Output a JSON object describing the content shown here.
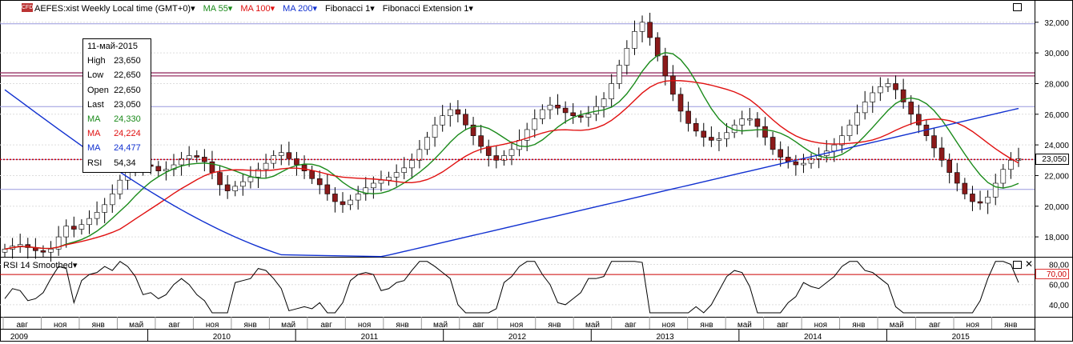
{
  "header": {
    "cfd_badge": "CFD",
    "symbol_label": "AEFES:xist Weekly Local time (GMT+0)▾",
    "ma55_label": "MA 55▾",
    "ma100_label": "MA 100▾",
    "ma200_label": "MA 200▾",
    "fib_label": "Fibonacci 1▾",
    "fibext_label": "Fibonacci Extension 1▾"
  },
  "info_box": {
    "date": "11-май-2015",
    "high_label": "High",
    "high": "23,650",
    "low_label": "Low",
    "low": "22,650",
    "open_label": "Open",
    "open": "22,650",
    "last_label": "Last",
    "last": "23,050",
    "ma55_label": "MA",
    "ma55": "24,330",
    "ma100_label": "MA",
    "ma100": "24,224",
    "ma200_label": "MA",
    "ma200": "24,477",
    "rsi_label": "RSI",
    "rsi": "54,34"
  },
  "rsi_header": "RSI 14 Smoothed▾",
  "price_tag": "23,050",
  "rsi_level_tag": "70,00",
  "colors": {
    "ma55": "#1a8a1a",
    "ma100": "#e01010",
    "ma200": "#1030d0",
    "price_line": "#cc0000",
    "fib": "#9999dd"
  },
  "chart_data": {
    "type": "candlestick",
    "timeframe": "weekly",
    "y_ticks": [
      "32,000",
      "30,000",
      "28,000",
      "26,000",
      "24,000",
      "22,000",
      "20,000",
      "18,000"
    ],
    "ylim": [
      16700,
      33400
    ],
    "rsi_ticks": [
      "80,00",
      "60,00",
      "40,00"
    ],
    "rsi_lim": [
      28,
      86
    ],
    "rsi_level": 70,
    "x_month_labels": [
      "авг",
      "ноя",
      "янв",
      "май",
      "авг",
      "ноя",
      "янв",
      "май",
      "авг",
      "ноя",
      "янв",
      "май",
      "авг",
      "ноя",
      "янв",
      "май",
      "авг",
      "ноя",
      "янв",
      "май",
      "авг",
      "ноя",
      "янв",
      "май",
      "авг",
      "ноя",
      "янв"
    ],
    "x_year_labels": [
      "2009",
      "2010",
      "2011",
      "2012",
      "2013",
      "2014",
      "2015"
    ],
    "last_close": 23050,
    "ma_last": {
      "MA 55": 24330,
      "MA 100": 24224,
      "MA 200": 24477
    },
    "rsi_last": 54.34,
    "fib_levels": [
      31900,
      28700,
      28500,
      26500,
      23050,
      21100
    ],
    "closes": [
      17200,
      17400,
      17500,
      17300,
      17100,
      17000,
      17200,
      18000,
      18700,
      18500,
      18800,
      19200,
      19600,
      20100,
      20800,
      21700,
      22400,
      22800,
      22700,
      22600,
      22300,
      22400,
      22700,
      23100,
      23300,
      23200,
      22900,
      22200,
      21400,
      21000,
      21300,
      21600,
      21900,
      22400,
      22800,
      23300,
      23500,
      23100,
      22700,
      22300,
      21800,
      21400,
      20800,
      20300,
      20100,
      20400,
      20800,
      21200,
      21500,
      21700,
      21900,
      22200,
      22500,
      23000,
      23700,
      24500,
      25300,
      25900,
      26300,
      26000,
      25300,
      24600,
      23900,
      23300,
      23000,
      23300,
      23700,
      24300,
      25000,
      25700,
      26300,
      26600,
      26400,
      26100,
      25900,
      25800,
      26000,
      26500,
      27000,
      28000,
      29200,
      30300,
      31400,
      32000,
      31000,
      29800,
      28500,
      27300,
      26200,
      25400,
      24900,
      24500,
      24300,
      24400,
      24800,
      25300,
      25700,
      25700,
      25200,
      24500,
      23700,
      23200,
      22900,
      22700,
      22800,
      23100,
      23300,
      23600,
      24000,
      24600,
      25300,
      26100,
      26800,
      27400,
      27800,
      28000,
      27600,
      26800,
      26000,
      25300,
      24600,
      23800,
      23000,
      22200,
      21500,
      20800,
      20300,
      20200,
      20600,
      21500,
      22400,
      23000,
      23100
    ]
  }
}
